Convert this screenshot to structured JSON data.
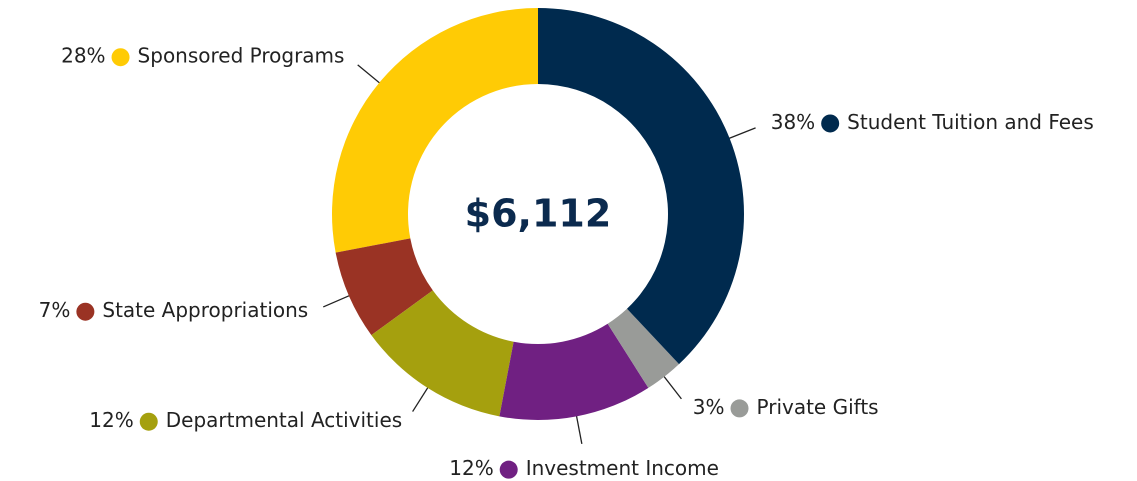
{
  "chart_data": {
    "type": "donut",
    "center_label": "$6,112",
    "categories": [
      "Student Tuition and Fees",
      "Private Gifts",
      "Investment Income",
      "Departmental Activities",
      "State Appropriations",
      "Sponsored Programs"
    ],
    "values": [
      38,
      3,
      12,
      12,
      7,
      28
    ],
    "value_labels": [
      "38%",
      "3%",
      "12%",
      "12%",
      "7%",
      "28%"
    ],
    "colors": [
      "#002a4e",
      "#999b98",
      "#702082",
      "#a5a00e",
      "#9a3324",
      "#ffcb05"
    ]
  }
}
